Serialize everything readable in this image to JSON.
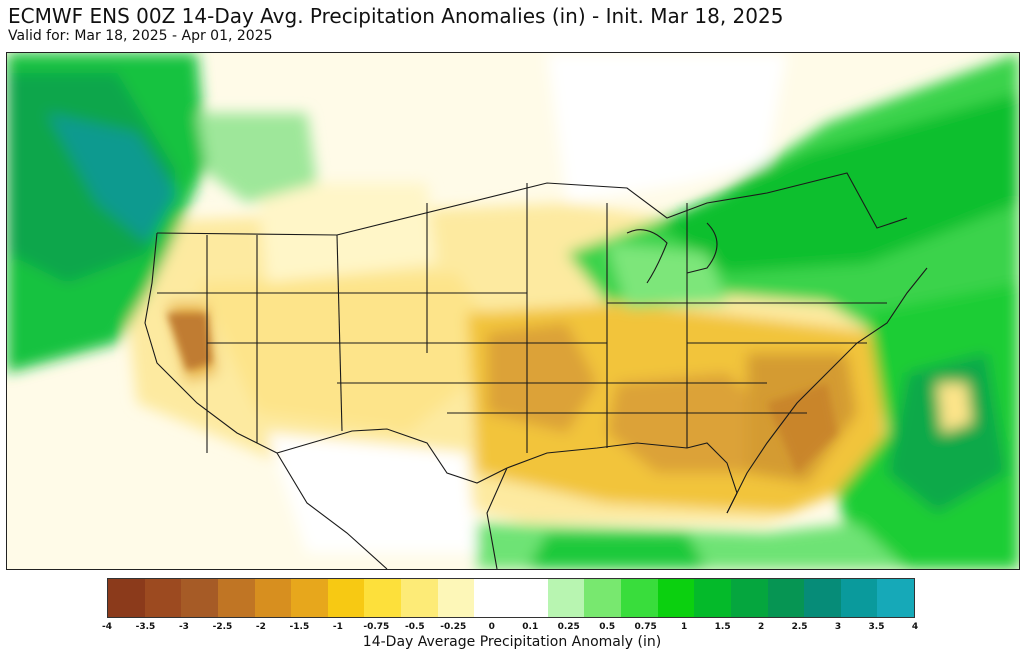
{
  "header": {
    "title": "ECMWF ENS 00Z 14-Day Avg. Precipitation Anomalies (in) - Init. Mar 18, 2025",
    "subtitle": "Valid for: Mar 18, 2025 - Apr 01, 2025"
  },
  "map": {
    "region": "Contiguous United States",
    "features": [
      "state-boundaries",
      "country-boundaries",
      "coastlines"
    ]
  },
  "colorbar": {
    "label": "14-Day Average Precipitation Anomaly (in)",
    "tick_labels": [
      "-4",
      "-3.5",
      "-3",
      "-2.5",
      "-2",
      "-1.5",
      "-1",
      "-0.75",
      "-0.5",
      "-0.25",
      "0",
      "0.1",
      "0.25",
      "0.5",
      "0.75",
      "1",
      "1.5",
      "2",
      "2.5",
      "3",
      "3.5",
      "4"
    ],
    "colors": [
      "#8b3a1b",
      "#9c4a20",
      "#a65b26",
      "#c07524",
      "#d78f1f",
      "#e7a71c",
      "#f7c913",
      "#fde03b",
      "#fdeb77",
      "#fdf7b8",
      "#ffffff",
      "#ffffff",
      "#b8f5b1",
      "#78e86f",
      "#39dd3c",
      "#0bd00f",
      "#04ba2a",
      "#05a63e",
      "#069553",
      "#068c78",
      "#0a9a9c",
      "#16a9b8"
    ]
  }
}
